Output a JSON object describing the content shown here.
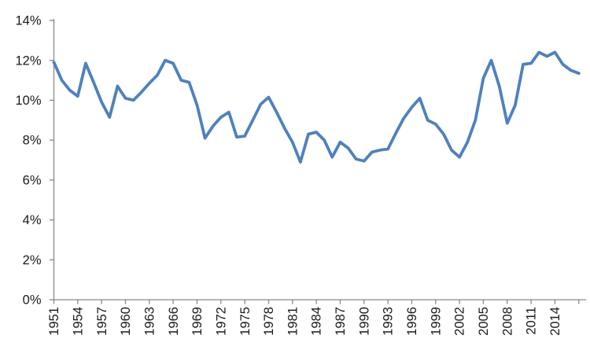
{
  "chart_data": {
    "type": "line",
    "title": "",
    "xlabel": "",
    "ylabel": "",
    "grid": false,
    "legend": "none",
    "ylim": [
      0,
      14
    ],
    "y_tick_step_percent": 2,
    "y_tick_labels": [
      "0%",
      "2%",
      "4%",
      "6%",
      "8%",
      "10%",
      "12%",
      "14%"
    ],
    "x_tick_step_years": 3,
    "x_tick_labels": [
      "1951",
      "1954",
      "1957",
      "1960",
      "1963",
      "1966",
      "1969",
      "1972",
      "1975",
      "1978",
      "1981",
      "1984",
      "1987",
      "1990",
      "1993",
      "1996",
      "1999",
      "2002",
      "2005",
      "2008",
      "2011",
      "2014"
    ],
    "x_axis_extra_tick_year": 2017,
    "years": [
      1951,
      1952,
      1953,
      1954,
      1955,
      1956,
      1957,
      1958,
      1959,
      1960,
      1961,
      1962,
      1963,
      1964,
      1965,
      1966,
      1967,
      1968,
      1969,
      1970,
      1971,
      1972,
      1973,
      1974,
      1975,
      1976,
      1977,
      1978,
      1979,
      1980,
      1981,
      1982,
      1983,
      1984,
      1985,
      1986,
      1987,
      1988,
      1989,
      1990,
      1991,
      1992,
      1993,
      1994,
      1995,
      1996,
      1997,
      1998,
      1999,
      2000,
      2001,
      2002,
      2003,
      2004,
      2005,
      2006,
      2007,
      2008,
      2009,
      2010,
      2011,
      2012,
      2013,
      2014,
      2015,
      2016,
      2017
    ],
    "values_percent": [
      11.9,
      11.0,
      10.5,
      10.2,
      11.85,
      10.9,
      9.9,
      9.15,
      10.7,
      10.1,
      10.0,
      10.4,
      10.85,
      11.25,
      12.0,
      11.85,
      11.0,
      10.9,
      9.75,
      8.1,
      8.7,
      9.15,
      9.4,
      8.15,
      8.2,
      9.0,
      9.8,
      10.15,
      9.4,
      8.6,
      7.9,
      6.9,
      8.3,
      8.4,
      8.0,
      7.15,
      7.9,
      7.6,
      7.05,
      6.95,
      7.4,
      7.5,
      7.55,
      8.35,
      9.1,
      9.65,
      10.1,
      9.0,
      8.8,
      8.3,
      7.5,
      7.15,
      7.9,
      9.0,
      11.1,
      12.0,
      10.7,
      8.85,
      9.75,
      11.8,
      11.85,
      12.4,
      12.2,
      12.4,
      11.8,
      11.5,
      11.35
    ],
    "colors": {
      "series_line": "#4F81BD",
      "axis": "#898989",
      "tick_label": "#1a1a1a",
      "background": "#ffffff"
    }
  }
}
